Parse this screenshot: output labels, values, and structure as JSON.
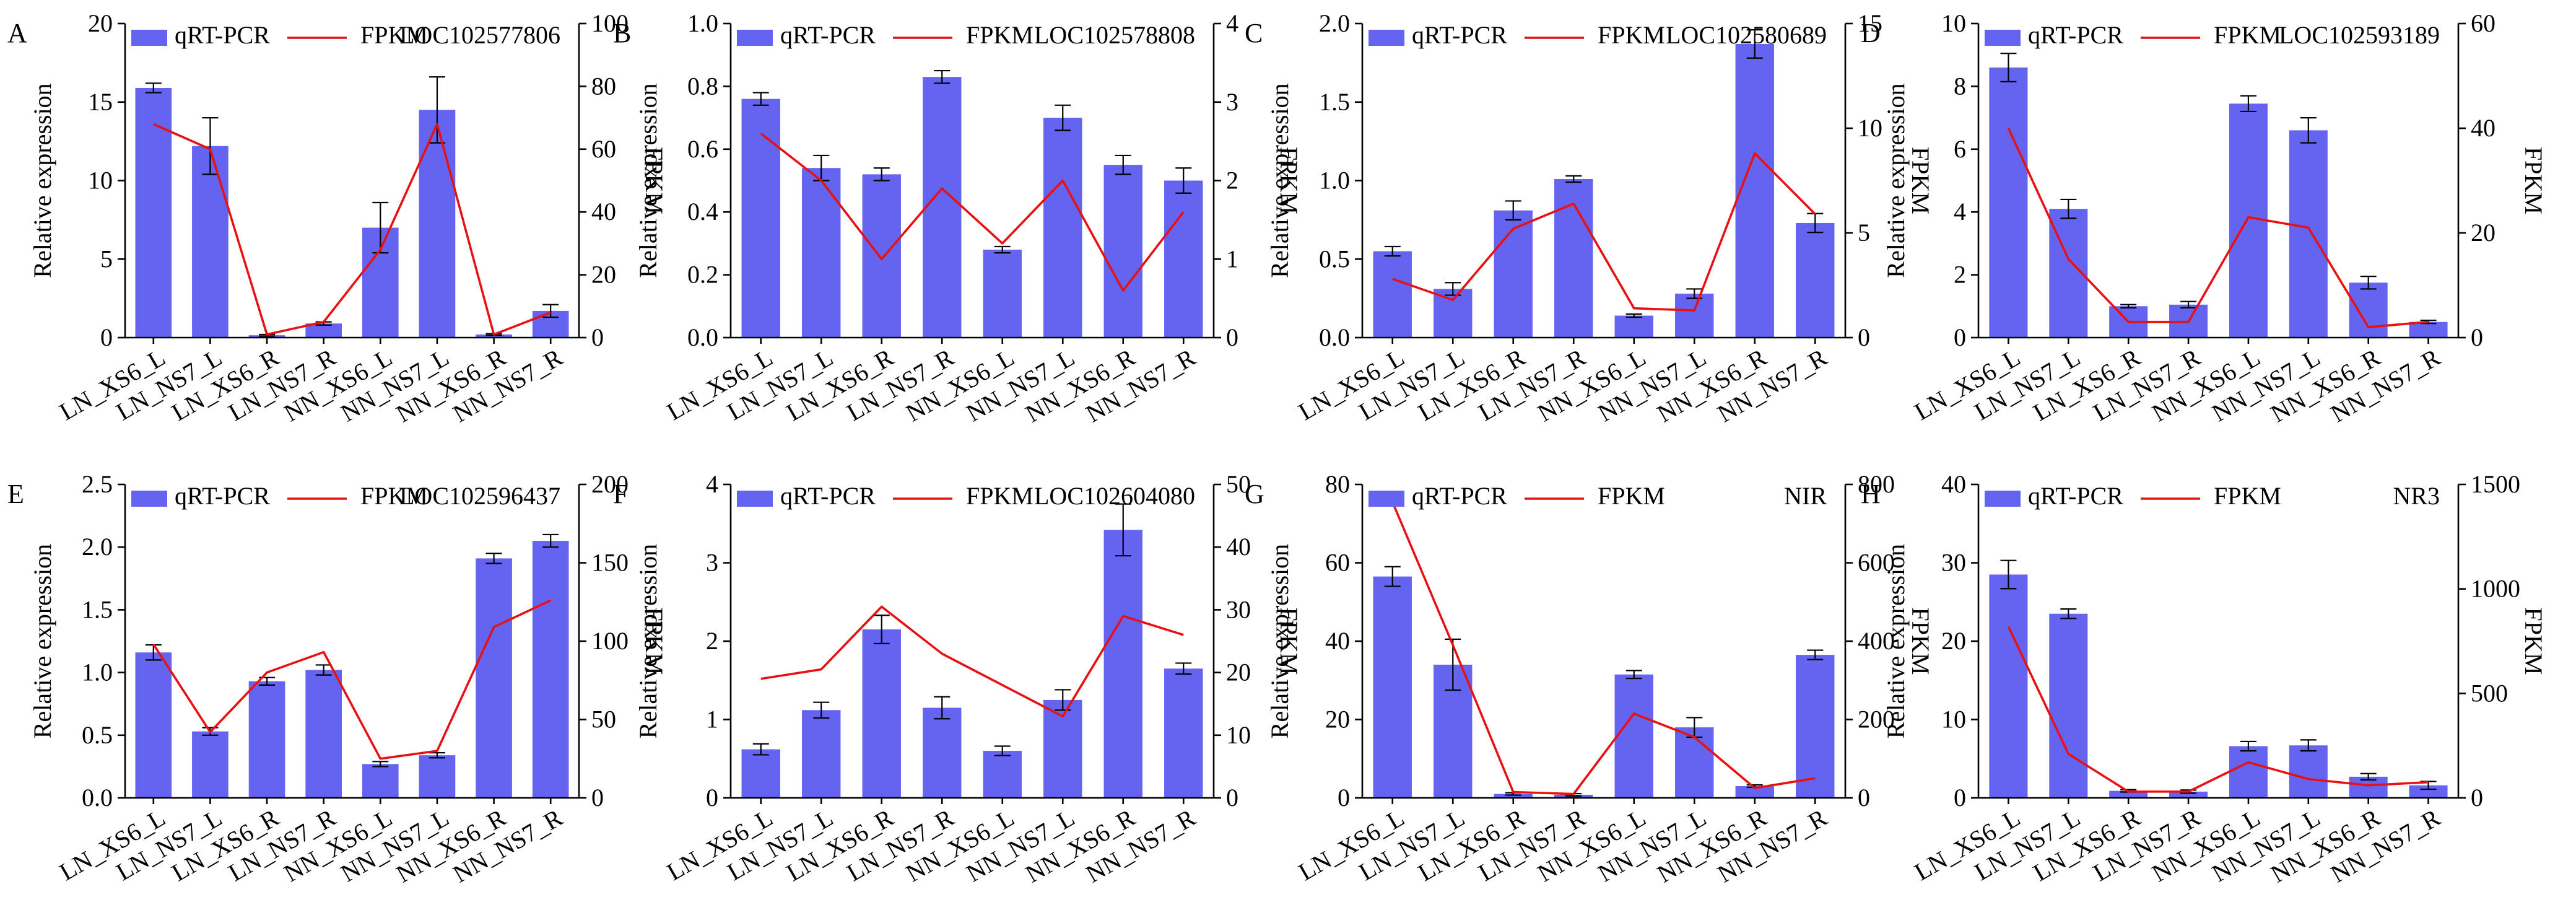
{
  "legend": {
    "bar_label": "qRT-PCR",
    "line_label": "FPKM"
  },
  "colors": {
    "bar": "#6464f0",
    "line": "#e81010",
    "axis": "#000000"
  },
  "chart_data": [
    {
      "type": "bar+line",
      "panel": "A",
      "gene": "LOC102577806",
      "categories": [
        "LN_XS6_L",
        "LN_NS7_L",
        "LN_XS6_R",
        "LN_NS7_R",
        "NN_XS6_L",
        "NN_NS7_L",
        "NN_XS6_R",
        "NN_NS7_R"
      ],
      "ylabel": "Relative expression",
      "y2label": "FPKM",
      "ylim": [
        0,
        20
      ],
      "yticks": [
        0,
        5,
        10,
        15,
        20
      ],
      "y2lim": [
        0,
        100
      ],
      "y2ticks": [
        0,
        20,
        40,
        60,
        80,
        100
      ],
      "series": [
        {
          "name": "qRT-PCR",
          "values": [
            15.9,
            12.2,
            0.15,
            0.9,
            7.0,
            14.5,
            0.2,
            1.7
          ],
          "errors": [
            0.3,
            1.8,
            0.05,
            0.1,
            1.6,
            2.1,
            0.05,
            0.4
          ]
        },
        {
          "name": "FPKM",
          "values": [
            68,
            60,
            1,
            5,
            28,
            68,
            1,
            8
          ]
        }
      ]
    },
    {
      "type": "bar+line",
      "panel": "B",
      "gene": "LOC102578808",
      "categories": [
        "LN_XS6_L",
        "LN_NS7_L",
        "LN_XS6_R",
        "LN_NS7_R",
        "NN_XS6_L",
        "NN_NS7_L",
        "NN_XS6_R",
        "NN_NS7_R"
      ],
      "ylabel": "Relative expression",
      "y2label": "FPKM",
      "ylim": [
        0,
        1.0
      ],
      "yticks": [
        "0.0",
        "0.2",
        "0.4",
        "0.6",
        "0.8",
        "1.0"
      ],
      "y2lim": [
        0,
        4
      ],
      "y2ticks": [
        0,
        1,
        2,
        3,
        4
      ],
      "series": [
        {
          "name": "qRT-PCR",
          "values": [
            0.76,
            0.54,
            0.52,
            0.83,
            0.28,
            0.7,
            0.55,
            0.5
          ],
          "errors": [
            0.02,
            0.04,
            0.02,
            0.02,
            0.01,
            0.04,
            0.03,
            0.04
          ]
        },
        {
          "name": "FPKM",
          "values": [
            2.6,
            2.0,
            1.0,
            1.9,
            1.2,
            2.0,
            0.6,
            1.6
          ]
        }
      ]
    },
    {
      "type": "bar+line",
      "panel": "C",
      "gene": "LOC102580689",
      "categories": [
        "LN_XS6_L",
        "LN_NS7_L",
        "LN_XS6_R",
        "LN_NS7_R",
        "NN_XS6_L",
        "NN_NS7_L",
        "NN_XS6_R",
        "NN_NS7_R"
      ],
      "ylabel": "Relative expression",
      "y2label": "FPKM",
      "ylim": [
        0,
        2.0
      ],
      "yticks": [
        "0.0",
        "0.5",
        "1.0",
        "1.5",
        "2.0"
      ],
      "y2lim": [
        0,
        15
      ],
      "y2ticks": [
        0,
        5,
        10,
        15
      ],
      "series": [
        {
          "name": "qRT-PCR",
          "values": [
            0.55,
            0.31,
            0.81,
            1.01,
            0.14,
            0.28,
            1.87,
            0.73
          ],
          "errors": [
            0.03,
            0.04,
            0.06,
            0.02,
            0.01,
            0.03,
            0.09,
            0.06
          ]
        },
        {
          "name": "FPKM",
          "values": [
            2.8,
            1.8,
            5.2,
            6.4,
            1.4,
            1.3,
            8.8,
            5.9
          ]
        }
      ]
    },
    {
      "type": "bar+line",
      "panel": "D",
      "gene": "LOC102593189",
      "categories": [
        "LN_XS6_L",
        "LN_NS7_L",
        "LN_XS6_R",
        "LN_NS7_R",
        "NN_XS6_L",
        "NN_NS7_L",
        "NN_XS6_R",
        "NN_NS7_R"
      ],
      "ylabel": "Relative expression",
      "y2label": "FPKM",
      "ylim": [
        0,
        10
      ],
      "yticks": [
        0,
        2,
        4,
        6,
        8,
        10
      ],
      "y2lim": [
        0,
        60
      ],
      "y2ticks": [
        0,
        20,
        40,
        60
      ],
      "series": [
        {
          "name": "qRT-PCR",
          "values": [
            8.6,
            4.1,
            1.0,
            1.05,
            7.45,
            6.6,
            1.75,
            0.5
          ],
          "errors": [
            0.45,
            0.3,
            0.05,
            0.1,
            0.25,
            0.4,
            0.2,
            0.05
          ]
        },
        {
          "name": "FPKM",
          "values": [
            40,
            15,
            3,
            3,
            23,
            21,
            2,
            3
          ]
        }
      ]
    },
    {
      "type": "bar+line",
      "panel": "E",
      "gene": "LOC102596437",
      "categories": [
        "LN_XS6_L",
        "LN_NS7_L",
        "LN_XS6_R",
        "LN_NS7_R",
        "NN_XS6_L",
        "NN_NS7_L",
        "NN_XS6_R",
        "NN_NS7_R"
      ],
      "ylabel": "Relative expression",
      "y2label": "FPKM",
      "ylim": [
        0,
        2.5
      ],
      "yticks": [
        "0.0",
        "0.5",
        "1.0",
        "1.5",
        "2.0",
        "2.5"
      ],
      "y2lim": [
        0,
        200
      ],
      "y2ticks": [
        0,
        50,
        100,
        150,
        200
      ],
      "series": [
        {
          "name": "qRT-PCR",
          "values": [
            1.16,
            0.53,
            0.93,
            1.02,
            0.27,
            0.34,
            1.91,
            2.05
          ],
          "errors": [
            0.06,
            0.03,
            0.03,
            0.04,
            0.02,
            0.02,
            0.04,
            0.05
          ]
        },
        {
          "name": "FPKM",
          "values": [
            98,
            42,
            80,
            93,
            25,
            30,
            109,
            126
          ]
        }
      ]
    },
    {
      "type": "bar+line",
      "panel": "F",
      "gene": "LOC102604080",
      "categories": [
        "LN_XS6_L",
        "LN_NS7_L",
        "LN_XS6_R",
        "LN_NS7_R",
        "NN_XS6_L",
        "NN_NS7_L",
        "NN_XS6_R",
        "NN_NS7_R"
      ],
      "ylabel": "Relative expression",
      "y2label": "FPKM",
      "ylim": [
        0,
        4
      ],
      "yticks": [
        0,
        1,
        2,
        3,
        4
      ],
      "y2lim": [
        0,
        50
      ],
      "y2ticks": [
        0,
        10,
        20,
        30,
        40,
        50
      ],
      "series": [
        {
          "name": "qRT-PCR",
          "values": [
            0.62,
            1.12,
            2.15,
            1.15,
            0.6,
            1.25,
            3.42,
            1.65
          ],
          "errors": [
            0.07,
            0.1,
            0.18,
            0.14,
            0.06,
            0.13,
            0.33,
            0.07
          ]
        },
        {
          "name": "FPKM",
          "values": [
            19,
            20.5,
            30.5,
            23,
            18,
            13,
            29,
            26
          ]
        }
      ]
    },
    {
      "type": "bar+line",
      "panel": "G",
      "gene": "NIR",
      "categories": [
        "LN_XS6_L",
        "LN_NS7_L",
        "LN_XS6_R",
        "LN_NS7_R",
        "NN_XS6_L",
        "NN_NS7_L",
        "NN_XS6_R",
        "NN_NS7_R"
      ],
      "ylabel": "Relative expression",
      "y2label": "FPKM",
      "ylim": [
        0,
        80
      ],
      "yticks": [
        0,
        20,
        40,
        60,
        80
      ],
      "y2lim": [
        0,
        800
      ],
      "y2ticks": [
        0,
        200,
        400,
        600,
        800
      ],
      "series": [
        {
          "name": "qRT-PCR",
          "values": [
            56.5,
            34,
            1,
            0.8,
            31.5,
            18,
            3,
            36.5
          ],
          "errors": [
            2.5,
            6.5,
            0.3,
            0.3,
            1,
            2.5,
            0.3,
            1.2
          ]
        },
        {
          "name": "FPKM",
          "values": [
            755,
            390,
            15,
            10,
            215,
            155,
            25,
            50
          ]
        }
      ]
    },
    {
      "type": "bar+line",
      "panel": "H",
      "gene": "NR3",
      "categories": [
        "LN_XS6_L",
        "LN_NS7_L",
        "LN_XS6_R",
        "LN_NS7_R",
        "NN_XS6_L",
        "NN_NS7_L",
        "NN_XS6_R",
        "NN_NS7_R"
      ],
      "ylabel": "Relative expression",
      "y2label": "FPKM",
      "ylim": [
        0,
        40
      ],
      "yticks": [
        0,
        10,
        20,
        30,
        40
      ],
      "y2lim": [
        0,
        1500
      ],
      "y2ticks": [
        0,
        500,
        1000,
        1500
      ],
      "series": [
        {
          "name": "qRT-PCR",
          "values": [
            28.5,
            23.5,
            0.9,
            0.8,
            6.6,
            6.7,
            2.7,
            1.6
          ],
          "errors": [
            1.8,
            0.6,
            0.15,
            0.2,
            0.6,
            0.7,
            0.4,
            0.5
          ]
        },
        {
          "name": "FPKM",
          "values": [
            820,
            210,
            30,
            30,
            170,
            90,
            60,
            75
          ]
        }
      ]
    }
  ]
}
